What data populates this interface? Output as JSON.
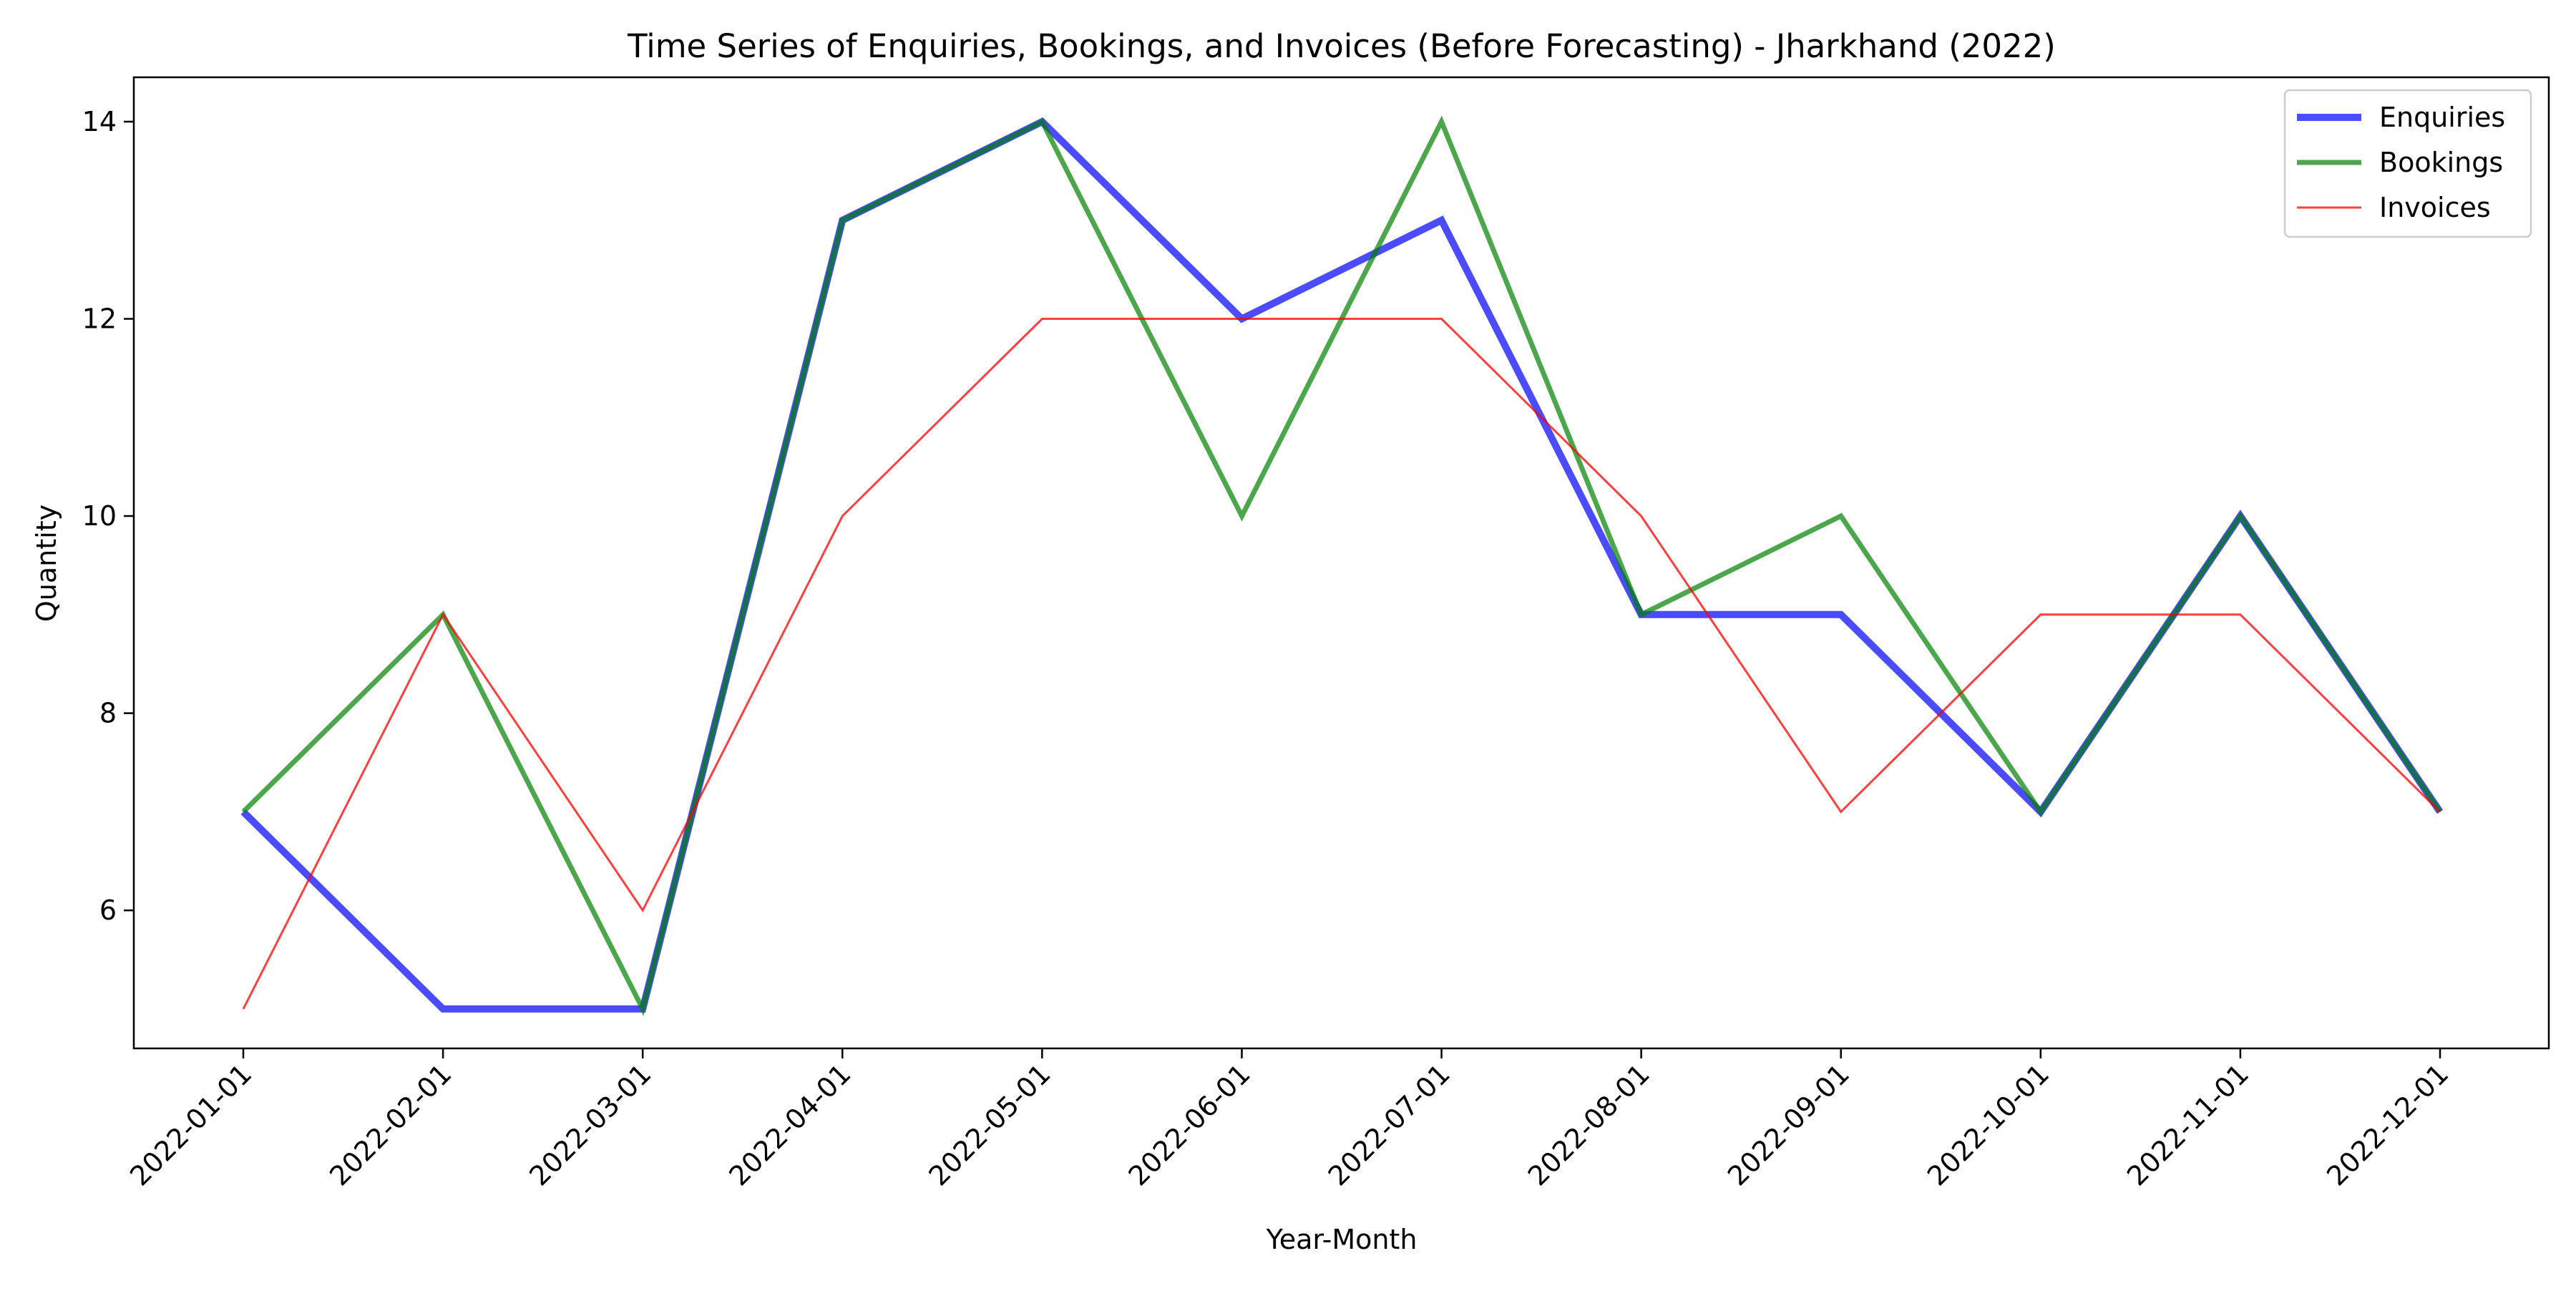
{
  "chart_data": {
    "type": "line",
    "title": "Time Series of Enquiries, Bookings, and Invoices (Before Forecasting) - Jharkhand (2022)",
    "xlabel": "Year-Month",
    "ylabel": "Quantity",
    "categories": [
      "2022-01-01",
      "2022-02-01",
      "2022-03-01",
      "2022-04-01",
      "2022-05-01",
      "2022-06-01",
      "2022-07-01",
      "2022-08-01",
      "2022-09-01",
      "2022-10-01",
      "2022-11-01",
      "2022-12-01"
    ],
    "ylim": [
      4.6,
      14.45
    ],
    "yticks": [
      6,
      8,
      10,
      12,
      14
    ],
    "grid": false,
    "legend_position": "top-right",
    "series": [
      {
        "name": "Enquiries",
        "color": "#0000ff",
        "opacity": 0.7,
        "weight": "thick",
        "values": [
          7,
          5,
          5,
          13,
          14,
          12,
          13,
          9,
          9,
          7,
          10,
          7
        ]
      },
      {
        "name": "Bookings",
        "color": "#008000",
        "opacity": 0.7,
        "weight": "medium",
        "values": [
          7,
          9,
          5,
          13,
          14,
          10,
          14,
          9,
          10,
          7,
          10,
          7
        ]
      },
      {
        "name": "Invoices",
        "color": "#ff0000",
        "opacity": 0.75,
        "weight": "thin",
        "values": [
          5,
          9,
          6,
          10,
          12,
          12,
          12,
          10,
          7,
          9,
          9,
          7
        ]
      }
    ]
  }
}
